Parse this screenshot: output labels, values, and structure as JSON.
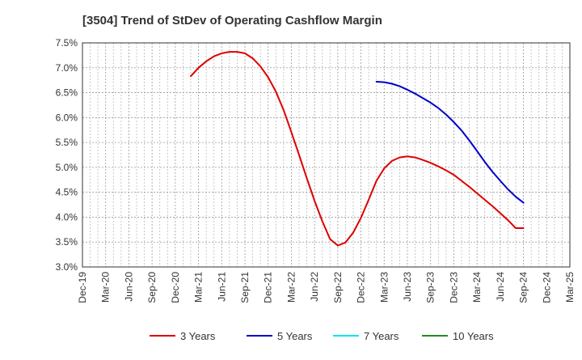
{
  "chart_data": {
    "type": "line",
    "title": "[3504]  Trend of StDev of Operating Cashflow Margin",
    "xlabel": "",
    "ylabel": "",
    "y_ticks": [
      "3.0%",
      "3.5%",
      "4.0%",
      "4.5%",
      "5.0%",
      "5.5%",
      "6.0%",
      "6.5%",
      "7.0%",
      "7.5%"
    ],
    "ylim": [
      3.0,
      7.5
    ],
    "x_ticks": [
      "Dec-19",
      "Mar-20",
      "Jun-20",
      "Sep-20",
      "Dec-20",
      "Mar-21",
      "Jun-21",
      "Sep-21",
      "Dec-21",
      "Mar-22",
      "Jun-22",
      "Sep-22",
      "Dec-22",
      "Mar-23",
      "Jun-23",
      "Sep-23",
      "Dec-23",
      "Mar-24",
      "Jun-24",
      "Sep-24",
      "Dec-24",
      "Mar-25"
    ],
    "grid": true,
    "legend_position": "bottom",
    "series": [
      {
        "name": "3 Years",
        "color": "#dd0000",
        "x": [
          "Feb-21",
          "Mar-21",
          "Apr-21",
          "May-21",
          "Jun-21",
          "Jul-21",
          "Aug-21",
          "Sep-21",
          "Oct-21",
          "Nov-21",
          "Dec-21",
          "Jan-22",
          "Feb-22",
          "Mar-22",
          "Apr-22",
          "May-22",
          "Jun-22",
          "Jul-22",
          "Aug-22",
          "Sep-22",
          "Oct-22",
          "Nov-22",
          "Dec-22",
          "Jan-23",
          "Feb-23",
          "Mar-23",
          "Apr-23",
          "May-23",
          "Jun-23",
          "Jul-23",
          "Aug-23",
          "Sep-23",
          "Oct-23",
          "Nov-23",
          "Dec-23",
          "Jan-24",
          "Feb-24",
          "Mar-24",
          "Apr-24",
          "May-24",
          "Jun-24",
          "Jul-24",
          "Aug-24",
          "Sep-24"
        ],
        "values": [
          6.83,
          7.0,
          7.13,
          7.23,
          7.29,
          7.32,
          7.32,
          7.29,
          7.19,
          7.03,
          6.81,
          6.52,
          6.15,
          5.71,
          5.25,
          4.78,
          4.33,
          3.92,
          3.56,
          3.43,
          3.49,
          3.69,
          3.99,
          4.35,
          4.73,
          4.98,
          5.13,
          5.2,
          5.22,
          5.2,
          5.15,
          5.09,
          5.02,
          4.94,
          4.85,
          4.73,
          4.61,
          4.48,
          4.35,
          4.22,
          4.08,
          3.94,
          3.78,
          3.78
        ]
      },
      {
        "name": "5 Years",
        "color": "#0000cc",
        "x": [
          "Feb-23",
          "Mar-23",
          "Apr-23",
          "May-23",
          "Jun-23",
          "Jul-23",
          "Aug-23",
          "Sep-23",
          "Oct-23",
          "Nov-23",
          "Dec-23",
          "Jan-24",
          "Feb-24",
          "Mar-24",
          "Apr-24",
          "May-24",
          "Jun-24",
          "Jul-24",
          "Aug-24",
          "Sep-24"
        ],
        "values": [
          6.72,
          6.71,
          6.68,
          6.63,
          6.56,
          6.48,
          6.39,
          6.3,
          6.19,
          6.06,
          5.91,
          5.74,
          5.54,
          5.33,
          5.11,
          4.91,
          4.73,
          4.56,
          4.41,
          4.29
        ]
      },
      {
        "name": "7 Years",
        "color": "#00e5ee",
        "x": [],
        "values": []
      },
      {
        "name": "10 Years",
        "color": "#228b22",
        "x": [],
        "values": []
      }
    ]
  }
}
